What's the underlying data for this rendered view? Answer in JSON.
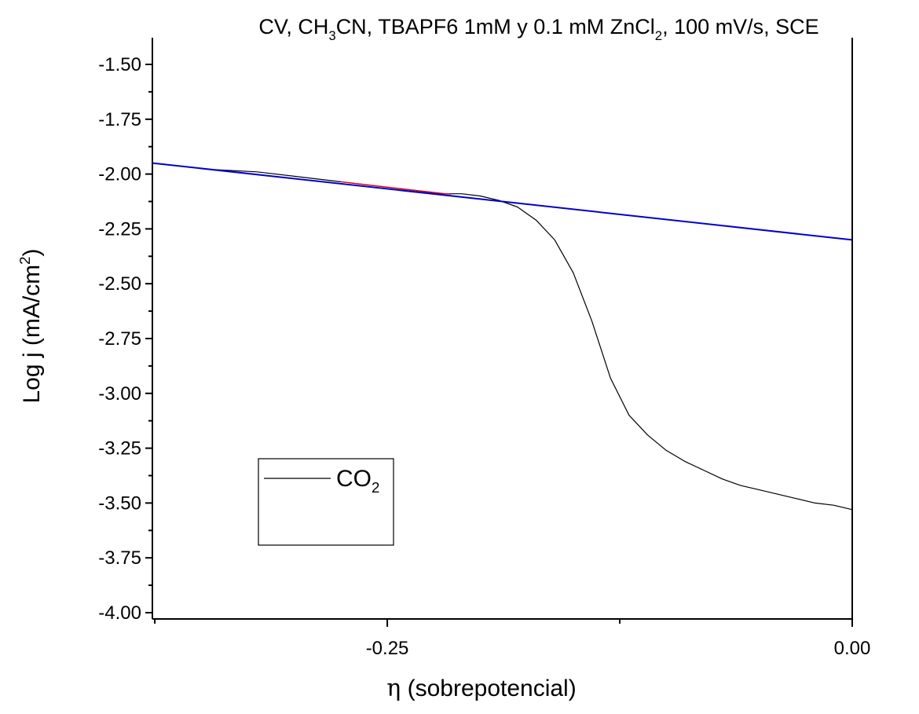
{
  "chart_data": {
    "type": "line",
    "title": {
      "parts": [
        {
          "t": "CV, CH"
        },
        {
          "t": "3",
          "sub": true
        },
        {
          "t": "CN,  TBAPF6 1mM y 0.1 mM ZnCl"
        },
        {
          "t": "2",
          "sub": true
        },
        {
          "t": ", 100 mV/s, SCE"
        }
      ]
    },
    "xlabel": {
      "symbol": "η",
      "text": " (sobrepotencial)"
    },
    "ylabel": {
      "parts": [
        {
          "t": "Log j (mA/cm"
        },
        {
          "t": "2",
          "sup": true
        },
        {
          "t": ")"
        }
      ]
    },
    "xlim": [
      -0.3763,
      0.0
    ],
    "ylim": [
      -4.0,
      -1.4
    ],
    "x_ticks": [
      {
        "value": -0.25,
        "label": "-0.25"
      },
      {
        "value": 0.0,
        "label": "0.00"
      }
    ],
    "y_ticks": [
      {
        "value": -1.5,
        "label": "-1.50"
      },
      {
        "value": -1.75,
        "label": "-1.75"
      },
      {
        "value": -2.0,
        "label": "-2.00"
      },
      {
        "value": -2.25,
        "label": "-2.25"
      },
      {
        "value": -2.5,
        "label": "-2.50"
      },
      {
        "value": -2.75,
        "label": "-2.75"
      },
      {
        "value": -3.0,
        "label": "-3.00"
      },
      {
        "value": -3.25,
        "label": "-3.25"
      },
      {
        "value": -3.5,
        "label": "-3.50"
      },
      {
        "value": -3.75,
        "label": "-3.75"
      },
      {
        "value": -4.0,
        "label": "-4.00"
      }
    ],
    "legend": {
      "placement": "lower-left",
      "entries": [
        {
          "parts": [
            {
              "t": "CO"
            },
            {
              "t": "2",
              "sub": true
            }
          ],
          "color": "#000000"
        }
      ]
    },
    "series": [
      {
        "name": "CO₂",
        "color": "#000000",
        "x": [
          -0.3426,
          -0.32,
          -0.3,
          -0.28,
          -0.26,
          -0.24,
          -0.22,
          -0.21,
          -0.2,
          -0.19,
          -0.18,
          -0.17,
          -0.16,
          -0.15,
          -0.14,
          -0.13,
          -0.12,
          -0.11,
          -0.1,
          -0.09,
          -0.08,
          -0.07,
          -0.06,
          -0.05,
          -0.04,
          -0.03,
          -0.02,
          -0.01,
          0.0
        ],
        "y": [
          -1.98,
          -1.99,
          -2.01,
          -2.03,
          -2.05,
          -2.07,
          -2.09,
          -2.09,
          -2.1,
          -2.12,
          -2.15,
          -2.21,
          -2.3,
          -2.45,
          -2.67,
          -2.93,
          -3.1,
          -3.19,
          -3.26,
          -3.31,
          -3.35,
          -3.39,
          -3.42,
          -3.44,
          -3.46,
          -3.48,
          -3.5,
          -3.51,
          -3.53
        ]
      },
      {
        "name": "fit",
        "color": "#0000cc",
        "x": [
          -0.3763,
          0.0
        ],
        "y": [
          -1.95,
          -2.3
        ]
      },
      {
        "name": "segment",
        "color": "#ff0000",
        "x": [
          -0.275,
          -0.216
        ],
        "y": [
          -2.035,
          -2.092
        ]
      }
    ]
  }
}
